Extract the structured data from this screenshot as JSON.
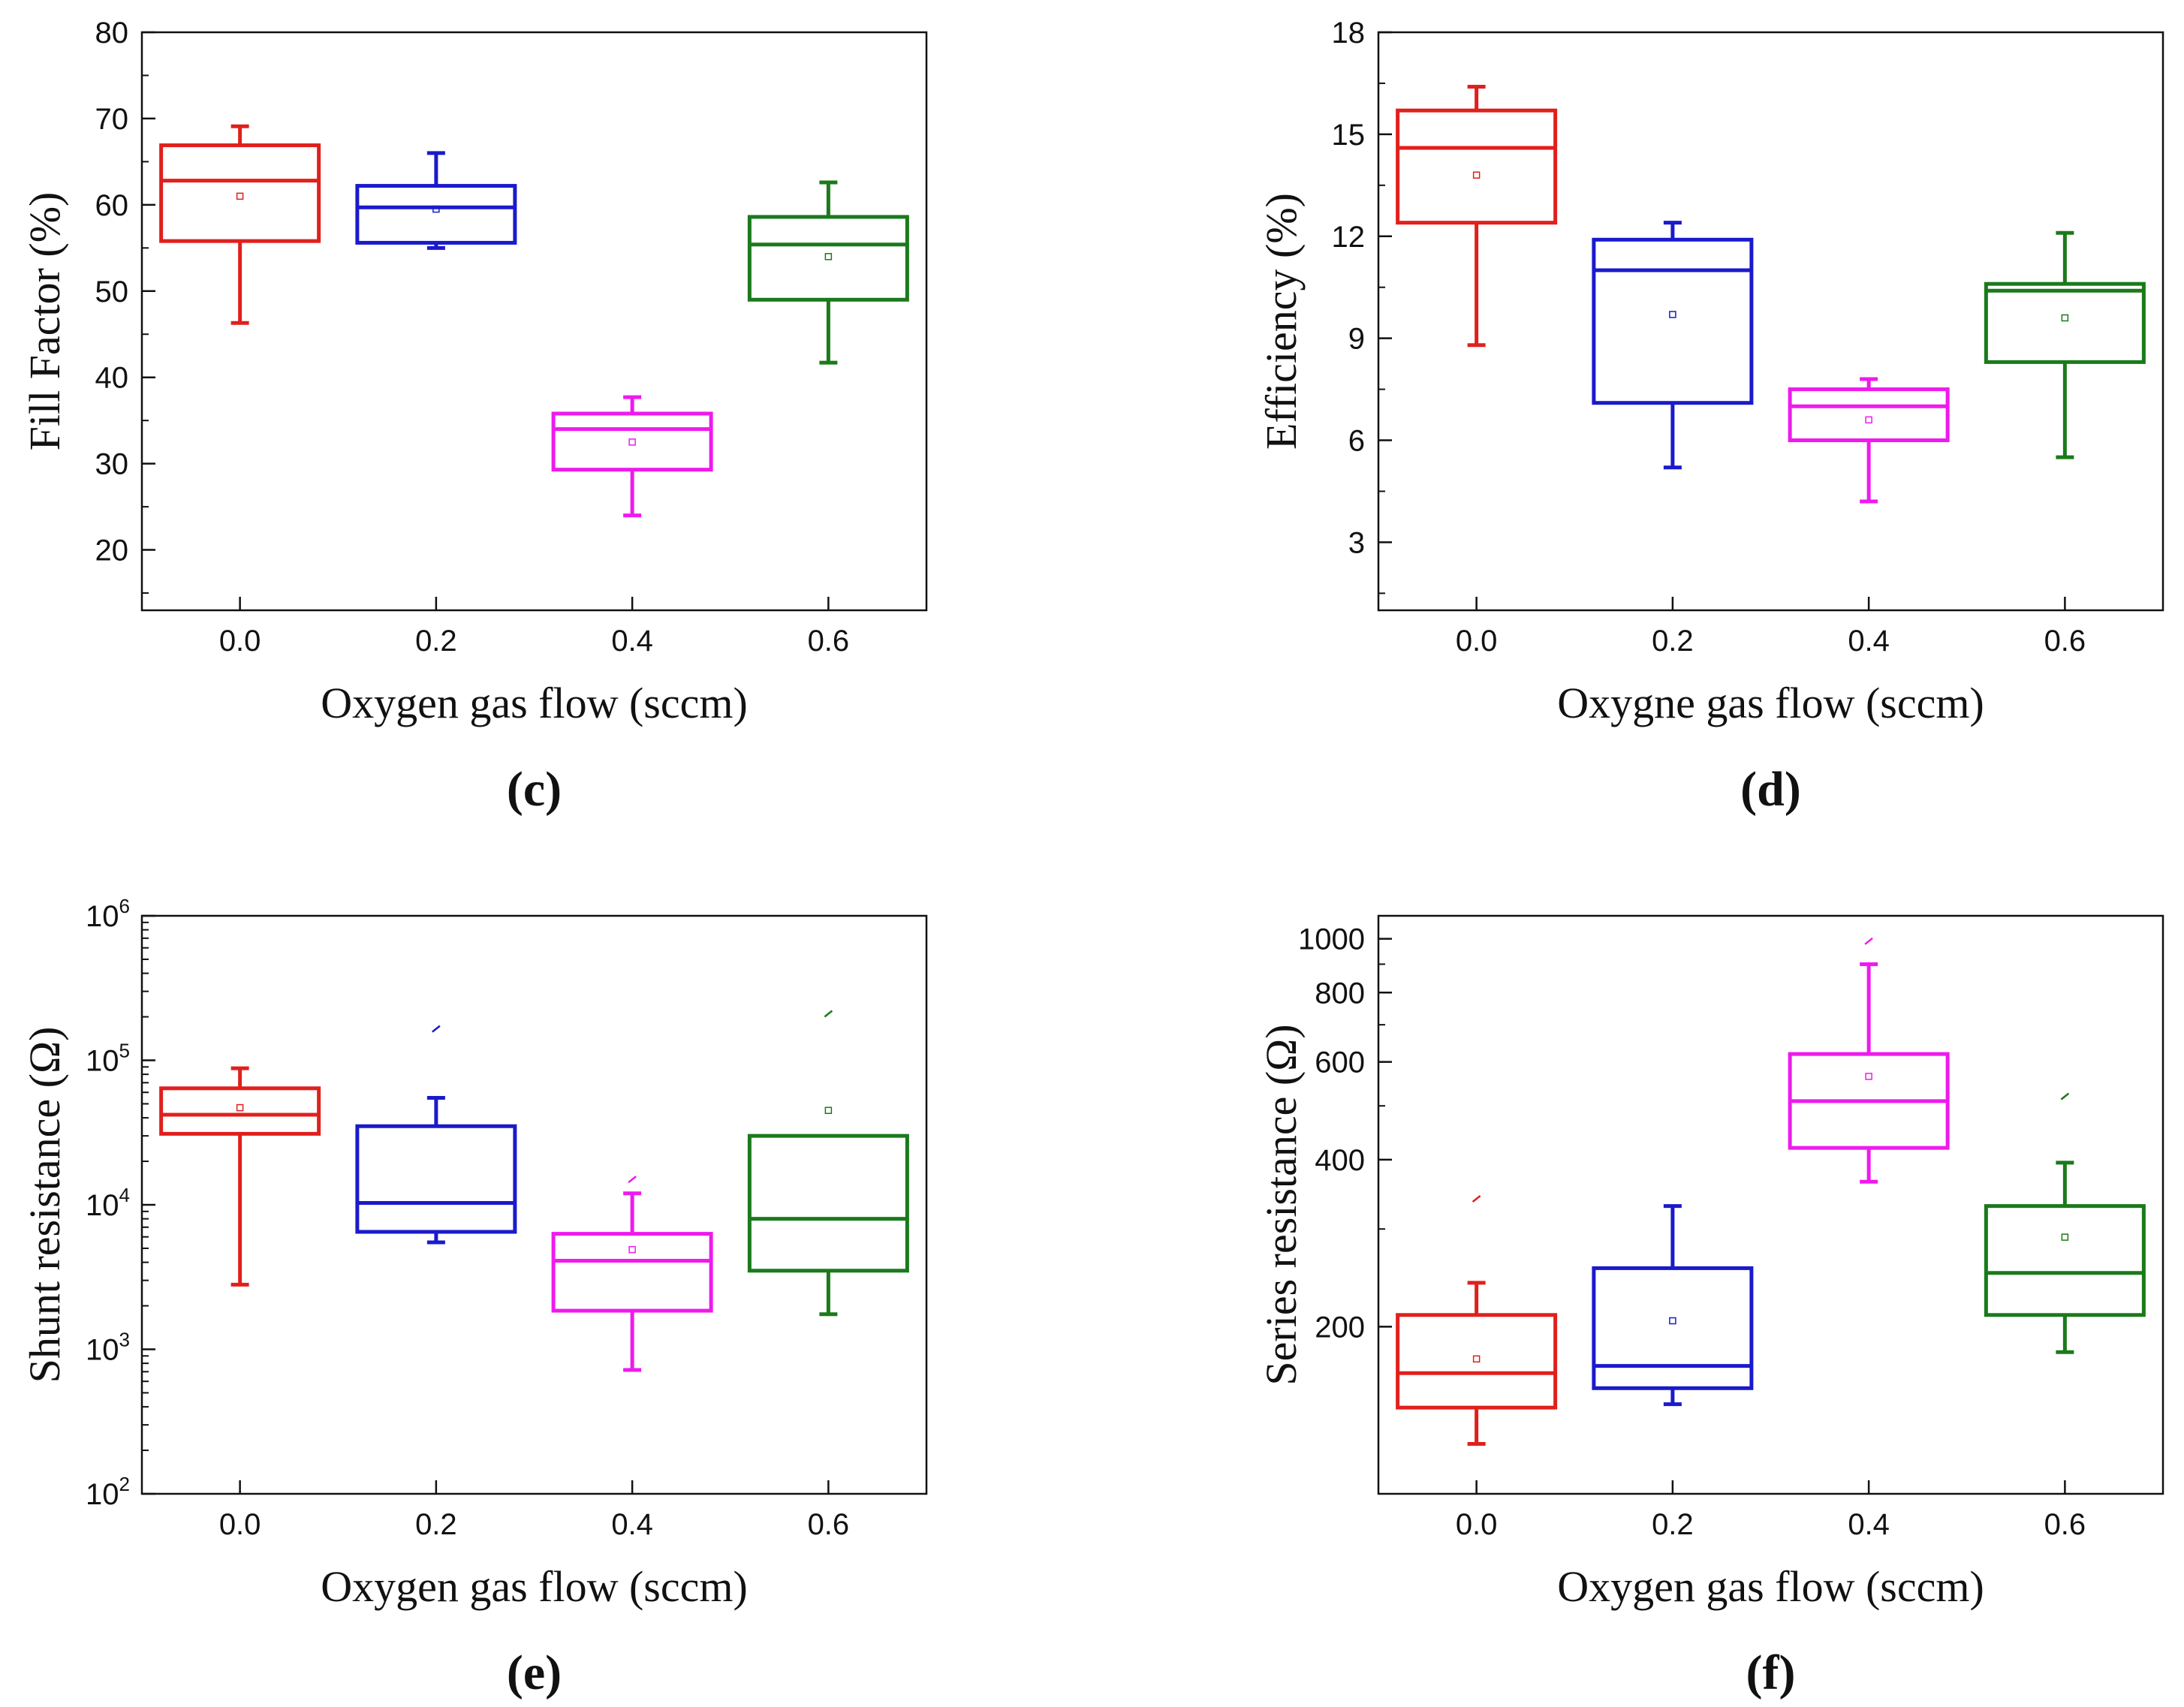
{
  "chart_data": [
    {
      "id": "c",
      "panel_label": "(c)",
      "type": "box",
      "xlabel": "Oxygen gas flow (sccm)",
      "ylabel": "Fill Factor (%)",
      "scale": "linear",
      "ylim": [
        13,
        80
      ],
      "yticks": [
        20,
        30,
        40,
        50,
        60,
        70,
        80
      ],
      "ytick_labels": [
        "20",
        "30",
        "40",
        "50",
        "60",
        "70",
        "80"
      ],
      "categories": [
        "0.0",
        "0.2",
        "0.4",
        "0.6"
      ],
      "colors": [
        "#e0201c",
        "#1a1acc",
        "#ee1aee",
        "#1a7a1a"
      ],
      "series": [
        {
          "name": "0.0",
          "whisker_low": 46.3,
          "q1": 55.8,
          "median": 62.8,
          "q3": 66.9,
          "whisker_high": 69.1,
          "mean": 61.0,
          "outliers": []
        },
        {
          "name": "0.2",
          "whisker_low": 55.0,
          "q1": 55.6,
          "median": 59.7,
          "q3": 62.2,
          "whisker_high": 66.0,
          "mean": 59.5,
          "outliers": []
        },
        {
          "name": "0.4",
          "whisker_low": 24.0,
          "q1": 29.3,
          "median": 34.0,
          "q3": 35.8,
          "whisker_high": 37.7,
          "mean": 32.5,
          "outliers": []
        },
        {
          "name": "0.6",
          "whisker_low": 41.7,
          "q1": 49.0,
          "median": 55.4,
          "q3": 58.6,
          "whisker_high": 62.6,
          "mean": 54.0,
          "outliers": []
        }
      ]
    },
    {
      "id": "d",
      "panel_label": "(d)",
      "type": "box",
      "xlabel": "Oxygne gas flow (sccm)",
      "ylabel": "Efficiency (%)",
      "scale": "linear",
      "ylim": [
        1.0,
        18.0
      ],
      "yticks": [
        3,
        6,
        9,
        12,
        15,
        18
      ],
      "ytick_labels": [
        "3",
        "6",
        "9",
        "12",
        "15",
        "18"
      ],
      "categories": [
        "0.0",
        "0.2",
        "0.4",
        "0.6"
      ],
      "colors": [
        "#e0201c",
        "#1a1acc",
        "#ee1aee",
        "#1a7a1a"
      ],
      "series": [
        {
          "name": "0.0",
          "whisker_low": 8.8,
          "q1": 12.4,
          "median": 14.6,
          "q3": 15.7,
          "whisker_high": 16.4,
          "mean": 13.8,
          "outliers": []
        },
        {
          "name": "0.2",
          "whisker_low": 5.2,
          "q1": 7.1,
          "median": 11.0,
          "q3": 11.9,
          "whisker_high": 12.4,
          "mean": 9.7,
          "outliers": []
        },
        {
          "name": "0.4",
          "whisker_low": 4.2,
          "q1": 6.0,
          "median": 7.0,
          "q3": 7.5,
          "whisker_high": 7.8,
          "mean": 6.6,
          "outliers": []
        },
        {
          "name": "0.6",
          "whisker_low": 5.5,
          "q1": 8.3,
          "median": 10.4,
          "q3": 10.6,
          "whisker_high": 12.1,
          "mean": 9.6,
          "outliers": []
        }
      ]
    },
    {
      "id": "e",
      "panel_label": "(e)",
      "type": "box",
      "xlabel": "Oxygen gas flow (sccm)",
      "ylabel": "Shunt resistance (Ω)",
      "scale": "log",
      "ylim": [
        100,
        1000000
      ],
      "yticks": [
        100,
        1000,
        10000,
        100000,
        1000000
      ],
      "ytick_labels": [
        {
          "base": "10",
          "exp": "2"
        },
        {
          "base": "10",
          "exp": "3"
        },
        {
          "base": "10",
          "exp": "4"
        },
        {
          "base": "10",
          "exp": "5"
        },
        {
          "base": "10",
          "exp": "6"
        }
      ],
      "categories": [
        "0.0",
        "0.2",
        "0.4",
        "0.6"
      ],
      "colors": [
        "#e0201c",
        "#1a1acc",
        "#ee1aee",
        "#1a7a1a"
      ],
      "series": [
        {
          "name": "0.0",
          "whisker_low": 2800,
          "q1": 31000,
          "median": 42000,
          "q3": 64000,
          "whisker_high": 88000,
          "mean": 47000,
          "outliers": []
        },
        {
          "name": "0.2",
          "whisker_low": 5500,
          "q1": 6500,
          "median": 10300,
          "q3": 35000,
          "whisker_high": 55000,
          "mean": null,
          "outliers": [
            165000
          ]
        },
        {
          "name": "0.4",
          "whisker_low": 720,
          "q1": 1850,
          "median": 4100,
          "q3": 6300,
          "whisker_high": 12000,
          "mean": 4900,
          "outliers": [
            15000
          ]
        },
        {
          "name": "0.6",
          "whisker_low": 1750,
          "q1": 3500,
          "median": 8000,
          "q3": 30000,
          "whisker_high": null,
          "mean": 45000,
          "outliers": [
            210000
          ]
        }
      ]
    },
    {
      "id": "f",
      "panel_label": "(f)",
      "type": "box",
      "xlabel": "Oxygen gas flow (sccm)",
      "ylabel": "Series resistance (Ω)",
      "scale": "log",
      "ylim": [
        100,
        1100
      ],
      "yticks": [
        200,
        400,
        600,
        800,
        1000
      ],
      "ytick_labels": [
        "200",
        "400",
        "600",
        "800",
        "1000"
      ],
      "categories": [
        "0.0",
        "0.2",
        "0.4",
        "0.6"
      ],
      "colors": [
        "#e0201c",
        "#1a1acc",
        "#ee1aee",
        "#1a7a1a"
      ],
      "series": [
        {
          "name": "0.0",
          "whisker_low": 123,
          "q1": 143,
          "median": 165,
          "q3": 210,
          "whisker_high": 240,
          "mean": 175,
          "outliers": [
            340
          ]
        },
        {
          "name": "0.2",
          "whisker_low": 145,
          "q1": 155,
          "median": 170,
          "q3": 255,
          "whisker_high": 330,
          "mean": 205,
          "outliers": []
        },
        {
          "name": "0.4",
          "whisker_low": 365,
          "q1": 420,
          "median": 510,
          "q3": 620,
          "whisker_high": 900,
          "mean": 565,
          "outliers": [
            990
          ]
        },
        {
          "name": "0.6",
          "whisker_low": 180,
          "q1": 210,
          "median": 250,
          "q3": 330,
          "whisker_high": 395,
          "mean": 290,
          "outliers": [
            520
          ]
        }
      ]
    }
  ]
}
